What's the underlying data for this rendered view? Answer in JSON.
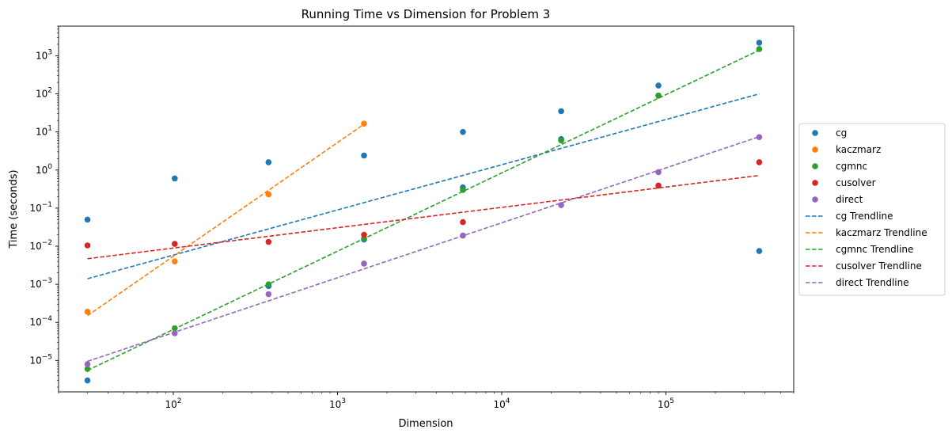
{
  "chart_data": {
    "type": "scatter",
    "title": "Running Time vs Dimension for Problem 3",
    "xlabel": "Dimension",
    "ylabel": "Time (seconds)",
    "x_scale": "log",
    "y_scale": "log",
    "xlim": [
      20,
      600000
    ],
    "ylim": [
      1.5e-06,
      6000
    ],
    "grid": false,
    "legend_position": "right, outside plot",
    "x_ticks": [
      {
        "value": 100,
        "base": "10",
        "exp": "2"
      },
      {
        "value": 1000,
        "base": "10",
        "exp": "3"
      },
      {
        "value": 10000,
        "base": "10",
        "exp": "4"
      },
      {
        "value": 100000,
        "base": "10",
        "exp": "5"
      }
    ],
    "y_ticks": [
      {
        "value": 1e-05,
        "base": "10",
        "exp": "−5"
      },
      {
        "value": 0.0001,
        "base": "10",
        "exp": "−4"
      },
      {
        "value": 0.001,
        "base": "10",
        "exp": "−3"
      },
      {
        "value": 0.01,
        "base": "10",
        "exp": "−2"
      },
      {
        "value": 0.1,
        "base": "10",
        "exp": "−1"
      },
      {
        "value": 1,
        "base": "10",
        "exp": "0"
      },
      {
        "value": 10,
        "base": "10",
        "exp": "1"
      },
      {
        "value": 100,
        "base": "10",
        "exp": "2"
      },
      {
        "value": 1000,
        "base": "10",
        "exp": "3"
      }
    ],
    "series": [
      {
        "name": "cg",
        "color": "#1f77b4",
        "points": [
          [
            30,
            0.05
          ],
          [
            30,
            3e-06
          ],
          [
            102,
            0.6
          ],
          [
            380,
            1.6
          ],
          [
            380,
            0.0009
          ],
          [
            1450,
            2.4
          ],
          [
            1450,
            0.015
          ],
          [
            5800,
            10
          ],
          [
            5800,
            0.35
          ],
          [
            23000,
            35
          ],
          [
            23000,
            6.5
          ],
          [
            90000,
            165
          ],
          [
            90000,
            90
          ],
          [
            370000,
            2200
          ],
          [
            370000,
            0.0075
          ]
        ]
      },
      {
        "name": "kaczmarz",
        "color": "#ff7f0e",
        "points": [
          [
            30,
            0.00019
          ],
          [
            102,
            0.004
          ],
          [
            380,
            0.23
          ],
          [
            1450,
            16.5
          ]
        ]
      },
      {
        "name": "cgmnc",
        "color": "#2ca02c",
        "points": [
          [
            30,
            6e-06
          ],
          [
            102,
            7e-05
          ],
          [
            380,
            0.001
          ],
          [
            1450,
            0.016
          ],
          [
            5800,
            0.3
          ],
          [
            23000,
            6.0
          ],
          [
            90000,
            90
          ],
          [
            370000,
            1500
          ]
        ]
      },
      {
        "name": "cusolver",
        "color": "#d62728",
        "points": [
          [
            30,
            0.0105
          ],
          [
            102,
            0.0115
          ],
          [
            380,
            0.013
          ],
          [
            1450,
            0.02
          ],
          [
            5800,
            0.043
          ],
          [
            90000,
            0.39
          ],
          [
            370000,
            1.6
          ]
        ]
      },
      {
        "name": "direct",
        "color": "#9467bd",
        "points": [
          [
            30,
            8e-06
          ],
          [
            102,
            5.2e-05
          ],
          [
            380,
            0.00055
          ],
          [
            1450,
            0.0035
          ],
          [
            5800,
            0.019
          ],
          [
            23000,
            0.12
          ],
          [
            90000,
            0.88
          ],
          [
            370000,
            7.3
          ]
        ]
      }
    ],
    "trendlines": [
      {
        "name": "cg Trendline",
        "color": "#1f77b4",
        "from": [
          30,
          0.0014
        ],
        "to": [
          370000,
          100
        ]
      },
      {
        "name": "kaczmarz Trendline",
        "color": "#ff7f0e",
        "from": [
          30,
          0.00015
        ],
        "to": [
          1450,
          16
        ]
      },
      {
        "name": "cgmnc Trendline",
        "color": "#2ca02c",
        "from": [
          30,
          5.5e-06
        ],
        "to": [
          370000,
          1400
        ]
      },
      {
        "name": "cusolver Trendline",
        "color": "#d62728",
        "from": [
          30,
          0.0047
        ],
        "to": [
          370000,
          0.72
        ]
      },
      {
        "name": "direct Trendline",
        "color": "#9467bd",
        "from": [
          30,
          9.5e-06
        ],
        "to": [
          370000,
          7.5
        ]
      }
    ]
  }
}
